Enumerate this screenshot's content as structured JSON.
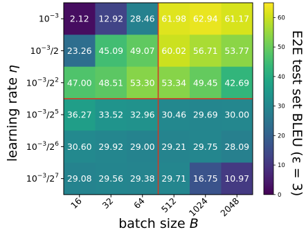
{
  "chart_data": {
    "type": "heatmap",
    "xlabel": "batch size B",
    "ylabel": "learning rate η",
    "x_tick_labels": [
      "16",
      "32",
      "64",
      "512",
      "1024",
      "2048"
    ],
    "y_tick_labels": [
      {
        "base": "10",
        "exp": "−3",
        "suffix": ""
      },
      {
        "base": "10",
        "exp": "−3",
        "suffix": "/2"
      },
      {
        "base": "10",
        "exp": "−3",
        "suffix": "/2",
        "suffix_exp": "2"
      },
      {
        "base": "10",
        "exp": "−3",
        "suffix": "/2",
        "suffix_exp": "5"
      },
      {
        "base": "10",
        "exp": "−3",
        "suffix": "/2",
        "suffix_exp": "6"
      },
      {
        "base": "10",
        "exp": "−3",
        "suffix": "/2",
        "suffix_exp": "7"
      }
    ],
    "values": [
      [
        2.12,
        12.92,
        28.46,
        61.98,
        62.94,
        61.17
      ],
      [
        23.26,
        45.09,
        49.07,
        60.02,
        56.71,
        53.77
      ],
      [
        47.0,
        48.51,
        53.3,
        53.34,
        49.45,
        42.69
      ],
      [
        36.27,
        33.52,
        32.96,
        30.46,
        29.69,
        30.0
      ],
      [
        30.6,
        29.92,
        29.0,
        29.21,
        29.75,
        28.09
      ],
      [
        29.08,
        29.56,
        29.38,
        29.71,
        16.75,
        10.97
      ]
    ],
    "value_labels": [
      [
        "2.12",
        "12.92",
        "28.46",
        "61.98",
        "62.94",
        "61.17"
      ],
      [
        "23.26",
        "45.09",
        "49.07",
        "60.02",
        "56.71",
        "53.77"
      ],
      [
        "47.00",
        "48.51",
        "53.30",
        "53.34",
        "49.45",
        "42.69"
      ],
      [
        "36.27",
        "33.52",
        "32.96",
        "30.46",
        "29.69",
        "30.00"
      ],
      [
        "30.60",
        "29.92",
        "29.00",
        "29.21",
        "29.75",
        "28.09"
      ],
      [
        "29.08",
        "29.56",
        "29.38",
        "29.71",
        "16.75",
        "10.97"
      ]
    ],
    "colorbar": {
      "label": "E2E test set BLEU (ε = 3)",
      "range": [
        0,
        65
      ],
      "ticks": [
        0,
        10,
        20,
        30,
        40,
        50,
        60
      ],
      "colormap": "viridis"
    },
    "divider_lines": {
      "vertical_between_columns": [
        3,
        4
      ],
      "horizontal_between_rows": [
        3,
        4
      ],
      "color": "#d03a24"
    }
  }
}
